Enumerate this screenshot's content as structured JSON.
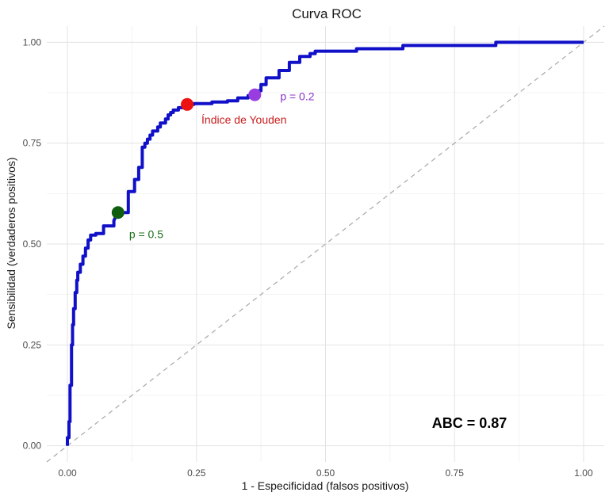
{
  "chart_data": {
    "type": "line",
    "title": "Curva ROC",
    "xlabel": "1 - Especificidad (falsos positivos)",
    "ylabel": "Sensibilidad (verdaderos positivos)",
    "xlim": [
      -0.04,
      1.04
    ],
    "ylim": [
      -0.04,
      1.04
    ],
    "x_ticks": [
      0,
      0.25,
      0.5,
      0.75,
      1
    ],
    "x_tick_labels": [
      "0.00",
      "0.25",
      "0.50",
      "0.75",
      "1.00"
    ],
    "y_ticks": [
      0,
      0.25,
      0.5,
      0.75,
      1
    ],
    "y_tick_labels": [
      "0.00",
      "0.25",
      "0.50",
      "0.75",
      "1.00"
    ],
    "grid": true,
    "colors": {
      "curve": "#1010c8",
      "diagonal": "#a8a8a8",
      "grid_major": "#e3e3e3",
      "grid_minor": "#f0f0f0"
    },
    "series": [
      {
        "x": [
          0,
          0,
          0.003,
          0.003,
          0.005,
          0.005,
          0.008,
          0.008,
          0.01,
          0.01,
          0.012,
          0.012,
          0.015,
          0.015,
          0.018,
          0.018,
          0.02,
          0.02,
          0.025,
          0.025,
          0.03,
          0.03,
          0.035,
          0.035,
          0.04,
          0.04,
          0.045,
          0.045,
          0.055,
          0.055,
          0.07,
          0.07,
          0.09,
          0.09,
          0.095,
          0.098,
          0.098,
          0.118,
          0.118,
          0.13,
          0.13,
          0.138,
          0.138,
          0.145,
          0.145,
          0.15,
          0.15,
          0.155,
          0.155,
          0.16,
          0.16,
          0.165,
          0.165,
          0.175,
          0.175,
          0.18,
          0.18,
          0.19,
          0.19,
          0.195,
          0.195,
          0.2,
          0.2,
          0.205,
          0.205,
          0.215,
          0.215,
          0.225,
          0.225,
          0.232,
          0.232,
          0.245,
          0.245,
          0.28,
          0.28,
          0.31,
          0.31,
          0.33,
          0.33,
          0.35,
          0.35,
          0.365,
          0.365,
          0.375,
          0.375,
          0.385,
          0.385,
          0.41,
          0.41,
          0.43,
          0.43,
          0.45,
          0.45,
          0.47,
          0.47,
          0.48,
          0.48,
          0.56,
          0.56,
          0.65,
          0.65,
          0.83,
          0.83,
          1.0
        ],
        "y": [
          0,
          0.02,
          0.02,
          0.06,
          0.06,
          0.15,
          0.15,
          0.25,
          0.25,
          0.3,
          0.3,
          0.34,
          0.34,
          0.38,
          0.38,
          0.41,
          0.41,
          0.43,
          0.43,
          0.45,
          0.45,
          0.47,
          0.47,
          0.49,
          0.49,
          0.51,
          0.51,
          0.522,
          0.522,
          0.526,
          0.526,
          0.545,
          0.545,
          0.558,
          0.572,
          0.572,
          0.578,
          0.578,
          0.63,
          0.63,
          0.66,
          0.66,
          0.69,
          0.69,
          0.74,
          0.74,
          0.75,
          0.75,
          0.76,
          0.76,
          0.77,
          0.77,
          0.78,
          0.78,
          0.79,
          0.79,
          0.8,
          0.8,
          0.81,
          0.81,
          0.82,
          0.82,
          0.826,
          0.826,
          0.832,
          0.832,
          0.838,
          0.838,
          0.842,
          0.842,
          0.846,
          0.846,
          0.848,
          0.848,
          0.852,
          0.852,
          0.855,
          0.855,
          0.862,
          0.862,
          0.868,
          0.868,
          0.88,
          0.88,
          0.895,
          0.895,
          0.912,
          0.912,
          0.93,
          0.93,
          0.95,
          0.95,
          0.965,
          0.965,
          0.972,
          0.972,
          0.978,
          0.978,
          0.984,
          0.984,
          0.992,
          0.992,
          1.0,
          1.0
        ]
      }
    ],
    "diagonal": {
      "x": [
        -0.04,
        1.04
      ],
      "y": [
        -0.04,
        1.04
      ]
    },
    "points": [
      {
        "label": "p = 0.5",
        "x": 0.098,
        "y": 0.578,
        "color": "#0f5e0f",
        "label_color": "#1a6e1a"
      },
      {
        "label": "Índice de Youden",
        "x": 0.232,
        "y": 0.846,
        "color": "#ee1111",
        "label_color": "#c81d1d"
      },
      {
        "label": "p = 0.2",
        "x": 0.363,
        "y": 0.87,
        "color": "#9a3de0",
        "label_color": "#8a34c8"
      }
    ],
    "annotation": {
      "text": "ABC = 0.87"
    }
  }
}
